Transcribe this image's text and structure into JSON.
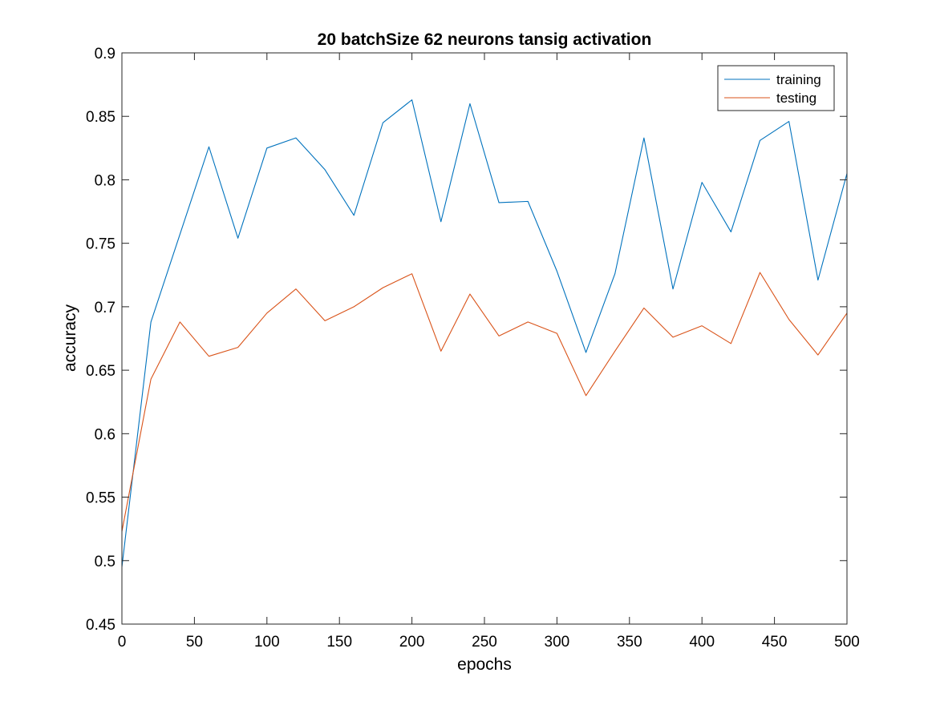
{
  "chart_data": {
    "type": "line",
    "title": "20 batchSize 62 neurons tansig activation",
    "xlabel": "epochs",
    "ylabel": "accuracy",
    "xlim": [
      0,
      500
    ],
    "ylim": [
      0.45,
      0.9
    ],
    "xticks": [
      0,
      50,
      100,
      150,
      200,
      250,
      300,
      350,
      400,
      450,
      500
    ],
    "xtick_labels": [
      "0",
      "50",
      "100",
      "150",
      "200",
      "250",
      "300",
      "350",
      "400",
      "450",
      "500"
    ],
    "yticks": [
      0.45,
      0.5,
      0.55,
      0.6,
      0.65,
      0.7,
      0.75,
      0.8,
      0.85,
      0.9
    ],
    "ytick_labels": [
      "0.45",
      "0.5",
      "0.55",
      "0.6",
      "0.65",
      "0.7",
      "0.75",
      "0.8",
      "0.85",
      "0.9"
    ],
    "grid": false,
    "legend_position": "top-right",
    "x": [
      0,
      20,
      40,
      60,
      80,
      100,
      120,
      140,
      160,
      180,
      200,
      220,
      240,
      260,
      280,
      300,
      320,
      340,
      360,
      380,
      400,
      420,
      440,
      460,
      480,
      500
    ],
    "series": [
      {
        "name": "training",
        "color": "#0072BD",
        "values": [
          0.495,
          0.688,
          0.757,
          0.826,
          0.754,
          0.825,
          0.833,
          0.808,
          0.772,
          0.845,
          0.863,
          0.767,
          0.86,
          0.782,
          0.783,
          0.728,
          0.664,
          0.726,
          0.833,
          0.714,
          0.798,
          0.759,
          0.831,
          0.846,
          0.721,
          0.805
        ]
      },
      {
        "name": "testing",
        "color": "#D95319",
        "values": [
          0.523,
          0.643,
          0.688,
          0.661,
          0.668,
          0.695,
          0.714,
          0.689,
          0.7,
          0.715,
          0.726,
          0.665,
          0.71,
          0.677,
          0.688,
          0.679,
          0.63,
          0.665,
          0.699,
          0.676,
          0.685,
          0.671,
          0.727,
          0.69,
          0.662,
          0.695
        ]
      }
    ]
  }
}
